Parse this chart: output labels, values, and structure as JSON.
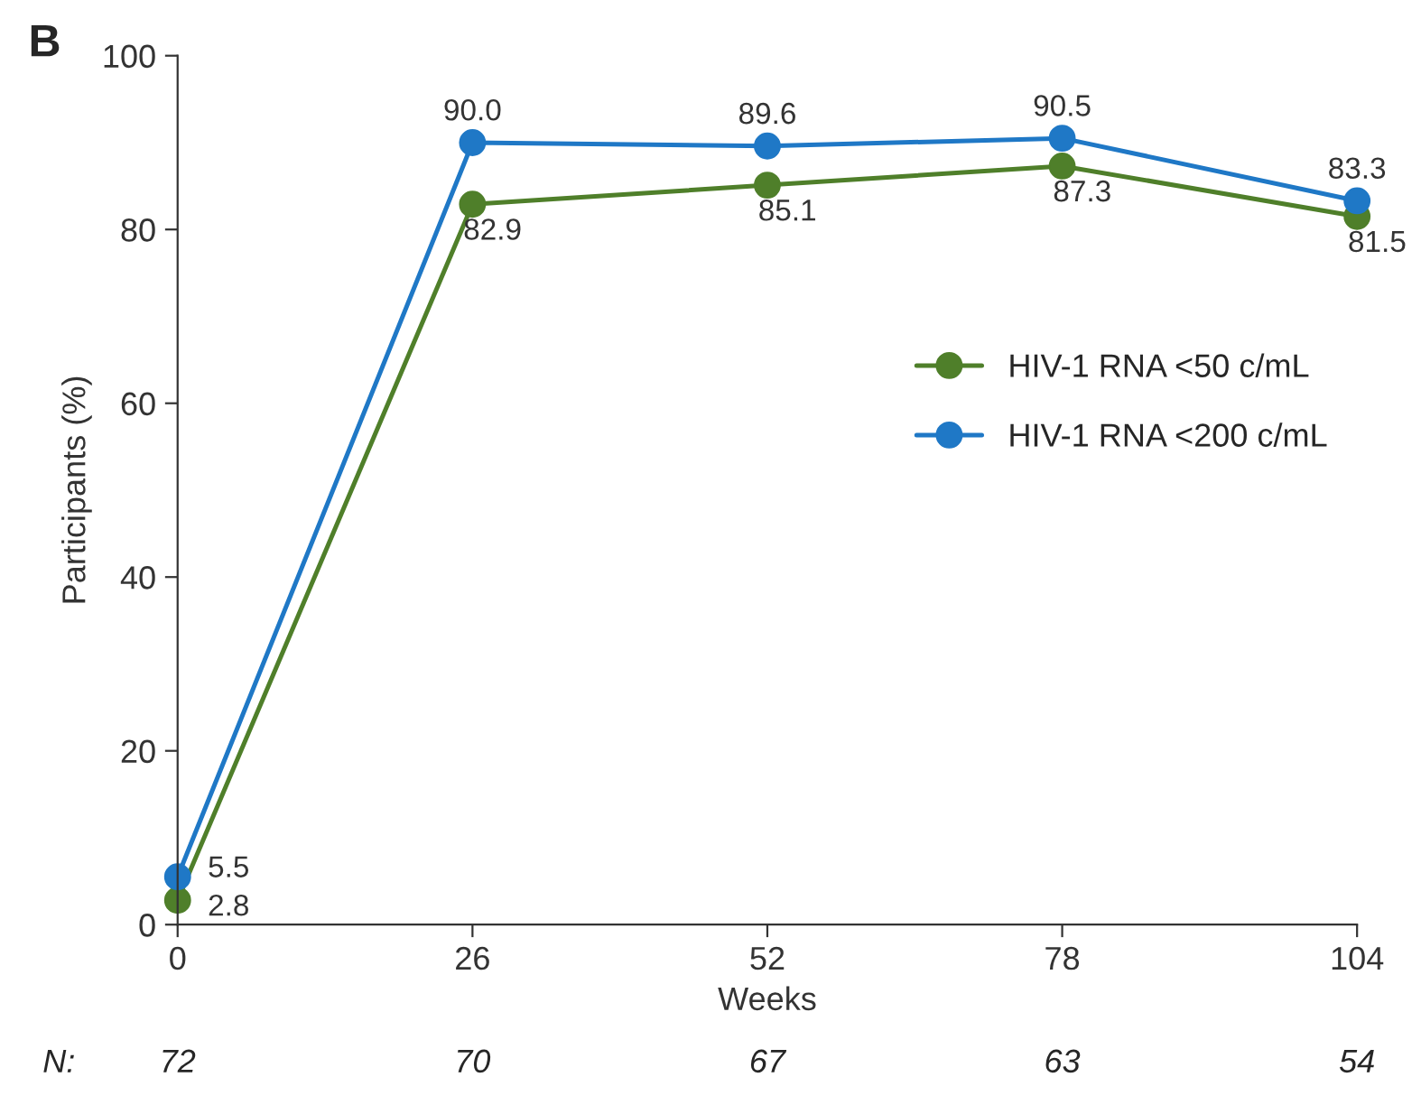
{
  "chart_data": {
    "type": "line",
    "xlabel": "Weeks",
    "ylabel": "Participants (%)",
    "x": [
      0,
      26,
      52,
      78,
      104
    ],
    "series": [
      {
        "name": "HIV-1 RNA <50 c/mL",
        "color": "#4f7f2a",
        "values": [
          2.8,
          82.9,
          85.1,
          87.3,
          81.5
        ],
        "value_labels": [
          "2.8",
          "82.9",
          "85.1",
          "87.3",
          "81.5"
        ]
      },
      {
        "name": "HIV-1 RNA <200 c/mL",
        "color": "#1f78c6",
        "values": [
          5.5,
          90.0,
          89.6,
          90.5,
          83.3
        ],
        "value_labels": [
          "5.5",
          "90.0",
          "89.6",
          "90.5",
          "83.3"
        ]
      }
    ],
    "xlim": [
      0,
      104
    ],
    "xticks": [
      0,
      26,
      52,
      78,
      104
    ],
    "ylim": [
      0,
      100
    ],
    "yticks": [
      0,
      20,
      40,
      60,
      80,
      100
    ],
    "grid": false,
    "legend": "right",
    "marker": "circle",
    "line_style": "solid",
    "annotations": [
      "B",
      "N:",
      "72",
      "70",
      "67",
      "63",
      "54"
    ]
  }
}
